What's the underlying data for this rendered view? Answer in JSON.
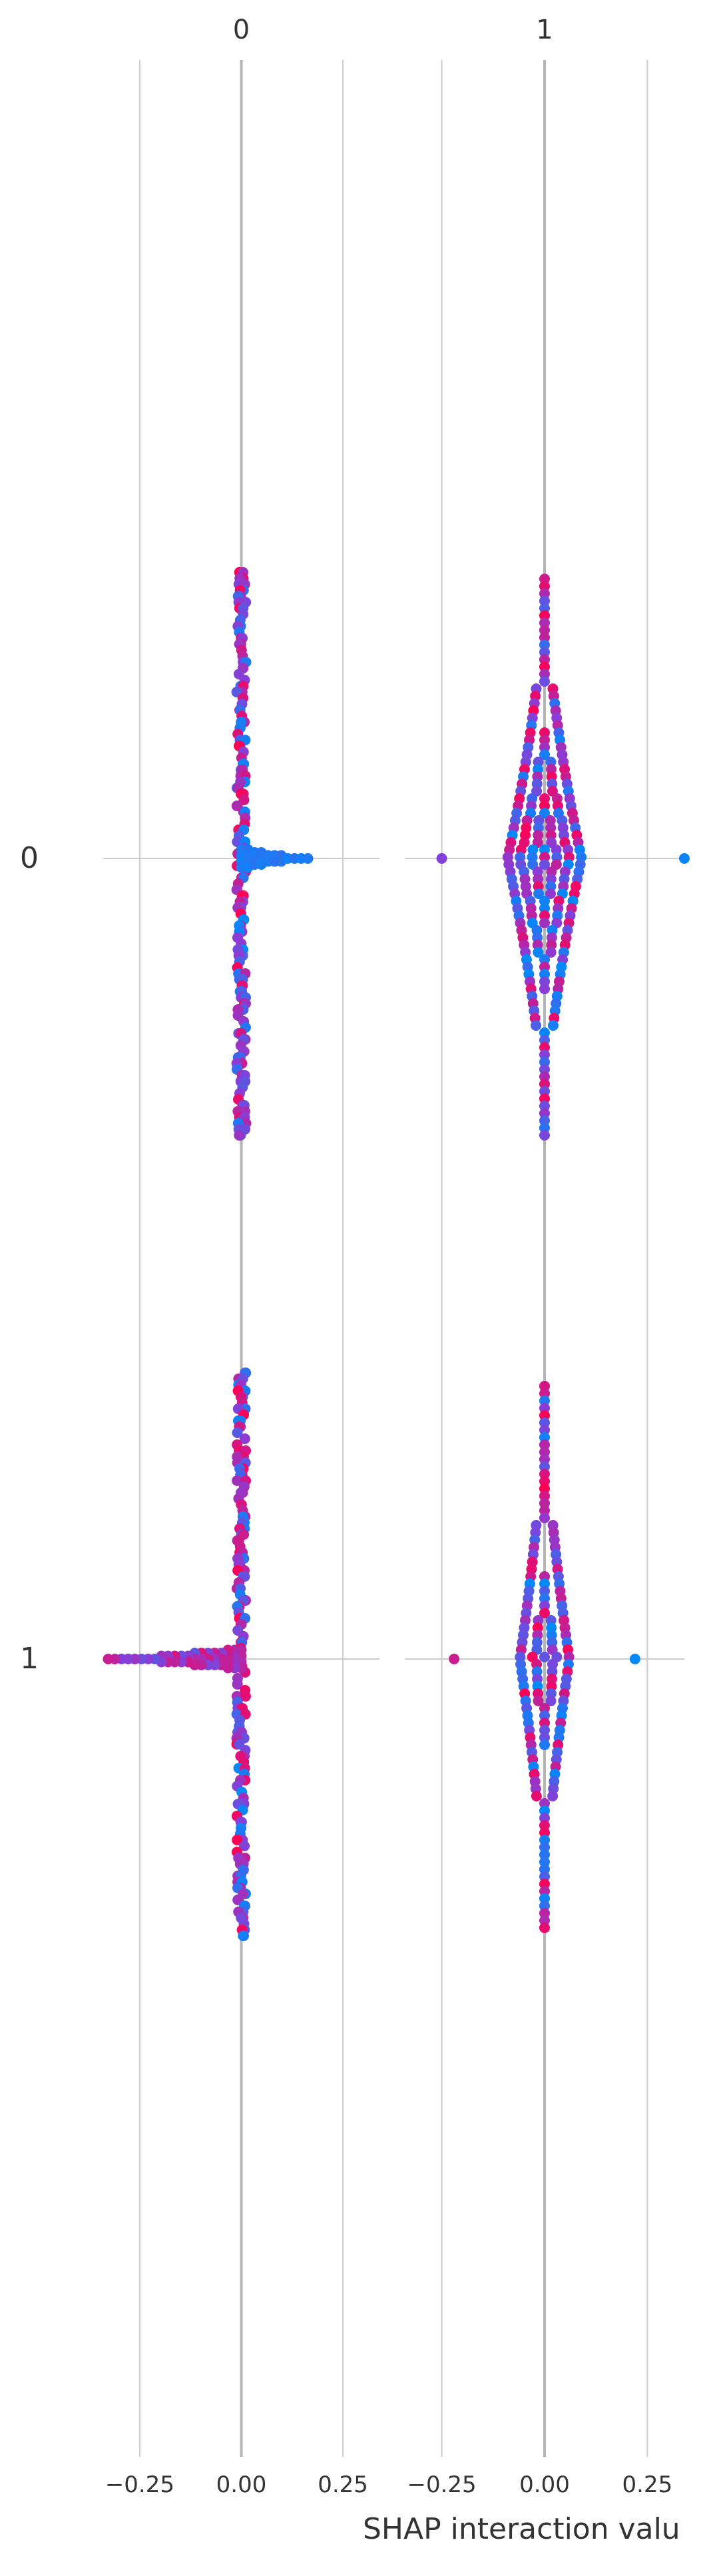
{
  "chart_data": {
    "type": "scatter",
    "subtype": "shap-interaction-beeswarm",
    "column_titles": [
      "0",
      "1"
    ],
    "row_labels": [
      "0",
      "1"
    ],
    "xlabel": "SHAP interaction valu",
    "xlim": [
      -0.34,
      0.34
    ],
    "x_ticks": [
      -0.25,
      0.0,
      0.25
    ],
    "x_tick_labels": [
      "−0.25",
      "0.00",
      "0.25"
    ],
    "grid": true,
    "legend": "none",
    "colors": {
      "low": "#008afb",
      "mid": "#8a3cd6",
      "high": "#ff0052"
    },
    "panels": [
      {
        "row": 0,
        "col": 0,
        "center": 0.0,
        "spread": 0.004,
        "n": 170,
        "side_tail": {
          "direction": 1,
          "extent": 0.17,
          "color": "low"
        },
        "shape": "needle"
      },
      {
        "row": 0,
        "col": 1,
        "center": 0.0,
        "spread": 0.09,
        "n": 300,
        "side_tail": null,
        "shape": "diamond",
        "extreme": [
          -0.25,
          0.34
        ]
      },
      {
        "row": 1,
        "col": 0,
        "center": 0.0,
        "spread": 0.006,
        "n": 170,
        "side_tail": {
          "direction": -1,
          "extent": 0.34,
          "color": "mid"
        },
        "shape": "needle"
      },
      {
        "row": 1,
        "col": 1,
        "center": 0.0,
        "spread": 0.06,
        "n": 250,
        "side_tail": null,
        "shape": "diamond",
        "extreme": [
          -0.22,
          0.22
        ]
      }
    ]
  }
}
